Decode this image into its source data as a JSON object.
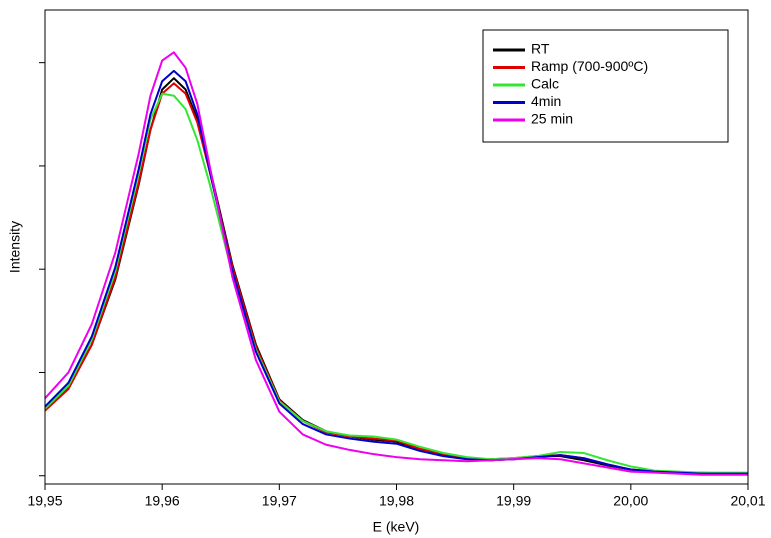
{
  "chart_data": {
    "type": "line",
    "x_label": "E (keV)",
    "y_label": "Intensity",
    "x": [
      19.95,
      19.952,
      19.954,
      19.956,
      19.958,
      19.959,
      19.96,
      19.961,
      19.962,
      19.963,
      19.964,
      19.966,
      19.968,
      19.97,
      19.972,
      19.974,
      19.976,
      19.978,
      19.98,
      19.982,
      19.984,
      19.986,
      19.988,
      19.99,
      19.992,
      19.994,
      19.996,
      19.998,
      20.0,
      20.002,
      20.004,
      20.006,
      20.008,
      20.01
    ],
    "series": [
      {
        "name": "RT",
        "color": "#000000",
        "values": [
          0.64,
          0.85,
          1.27,
          1.9,
          2.82,
          3.35,
          3.74,
          3.85,
          3.74,
          3.45,
          3.01,
          2.04,
          1.27,
          0.74,
          0.54,
          0.43,
          0.38,
          0.35,
          0.33,
          0.25,
          0.2,
          0.17,
          0.15,
          0.16,
          0.19,
          0.19,
          0.15,
          0.1,
          0.06,
          0.04,
          0.03,
          0.02,
          0.02,
          0.02
        ]
      },
      {
        "name": "Ramp (700-900ºC)",
        "color": "#e00000",
        "values": [
          0.63,
          0.84,
          1.27,
          1.92,
          2.84,
          3.35,
          3.7,
          3.8,
          3.7,
          3.42,
          2.97,
          2.02,
          1.25,
          0.73,
          0.53,
          0.42,
          0.38,
          0.36,
          0.34,
          0.26,
          0.21,
          0.17,
          0.16,
          0.17,
          0.19,
          0.2,
          0.17,
          0.11,
          0.06,
          0.04,
          0.03,
          0.03,
          0.02,
          0.02
        ]
      },
      {
        "name": "Calc",
        "color": "#33e633",
        "values": [
          0.65,
          0.87,
          1.32,
          1.98,
          2.93,
          3.45,
          3.7,
          3.68,
          3.55,
          3.25,
          2.85,
          1.95,
          1.22,
          0.72,
          0.53,
          0.43,
          0.39,
          0.38,
          0.35,
          0.28,
          0.22,
          0.18,
          0.16,
          0.17,
          0.19,
          0.23,
          0.22,
          0.15,
          0.09,
          0.05,
          0.04,
          0.03,
          0.03,
          0.03
        ]
      },
      {
        "name": "4min",
        "color": "#0000cc",
        "values": [
          0.67,
          0.9,
          1.35,
          2.02,
          2.97,
          3.5,
          3.82,
          3.92,
          3.82,
          3.5,
          2.98,
          1.98,
          1.2,
          0.7,
          0.5,
          0.4,
          0.36,
          0.33,
          0.31,
          0.24,
          0.19,
          0.16,
          0.15,
          0.16,
          0.18,
          0.2,
          0.17,
          0.11,
          0.06,
          0.04,
          0.03,
          0.02,
          0.02,
          0.02
        ]
      },
      {
        "name": "25 min",
        "color": "#ee00ee",
        "values": [
          0.75,
          1.0,
          1.47,
          2.16,
          3.12,
          3.68,
          4.02,
          4.1,
          3.95,
          3.6,
          3.03,
          1.92,
          1.12,
          0.62,
          0.4,
          0.3,
          0.25,
          0.21,
          0.18,
          0.16,
          0.15,
          0.14,
          0.15,
          0.16,
          0.17,
          0.16,
          0.12,
          0.08,
          0.04,
          0.03,
          0.02,
          0.01,
          0.01,
          0.01
        ]
      }
    ],
    "xlim": [
      19.95,
      20.01
    ],
    "xticks": [
      {
        "value": 19.95,
        "label": "19,95"
      },
      {
        "value": 19.96,
        "label": "19,96"
      },
      {
        "value": 19.97,
        "label": "19,97"
      },
      {
        "value": 19.98,
        "label": "19,98"
      },
      {
        "value": 19.99,
        "label": "19,99"
      },
      {
        "value": 20.0,
        "label": "20,00"
      },
      {
        "value": 20.01,
        "label": "20,01"
      }
    ],
    "ylim": [
      -0.08,
      4.51
    ],
    "yticks": [
      0,
      1,
      2,
      3,
      4
    ]
  }
}
